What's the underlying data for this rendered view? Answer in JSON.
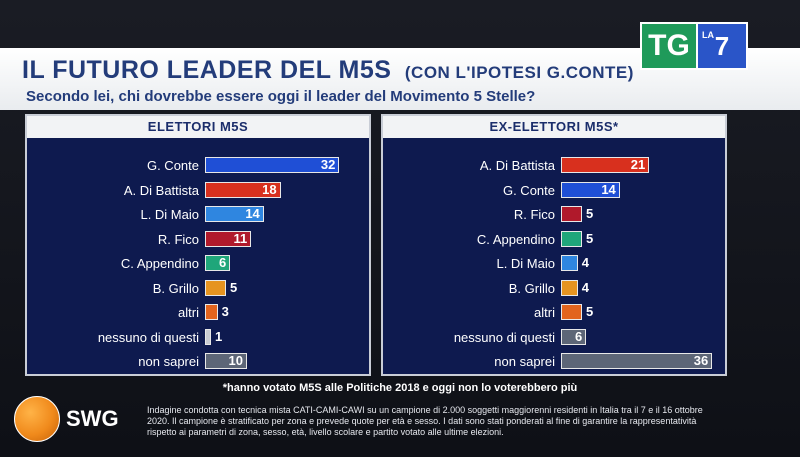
{
  "title": "IL FUTURO LEADER DEL M5S",
  "title_sub": "(CON L'IPOTESI G.CONTE)",
  "question": "Secondo lei, chi dovrebbe essere oggi il leader del Movimento 5 Stelle?",
  "logo": {
    "tg": "TG",
    "la": "LA",
    "seven": "7"
  },
  "footnote": "*hanno votato M5S alle Politiche 2018 e oggi non lo voterebbero più",
  "brand": "SWG",
  "methodology": "Indagine condotta con tecnica mista CATI-CAMI-CAWI su un campione di 2.000 soggetti maggiorenni residenti in Italia tra il 7 e il 16 ottobre 2020. Il campione è stratificato per zona e prevede quote per età e sesso. I dati sono stati ponderati al fine di garantire la rappresentatività rispetto ai parametri di zona, sesso, età, livello scolare e partito votato alle ultime elezioni.",
  "chart_data": [
    {
      "type": "bar",
      "orientation": "horizontal",
      "title": "ELETTORI M5S",
      "categories": [
        "G. Conte",
        "A. Di Battista",
        "L. Di Maio",
        "R. Fico",
        "C. Appendino",
        "B. Grillo",
        "altri",
        "nessuno di questi",
        "non saprei"
      ],
      "values": [
        32,
        18,
        14,
        11,
        6,
        5,
        3,
        1,
        10
      ],
      "colors": [
        "#1f4fd6",
        "#d8301e",
        "#2f86e0",
        "#b0192b",
        "#1fa67a",
        "#e69420",
        "#e2641e",
        "#c9ccd3",
        "#5d6677"
      ]
    },
    {
      "type": "bar",
      "orientation": "horizontal",
      "title": "EX-ELETTORI M5S*",
      "categories": [
        "A. Di Battista",
        "G. Conte",
        "R. Fico",
        "C. Appendino",
        "L. Di Maio",
        "B. Grillo",
        "altri",
        "nessuno di questi",
        "non saprei"
      ],
      "values": [
        21,
        14,
        5,
        5,
        4,
        4,
        5,
        6,
        36
      ],
      "colors": [
        "#d8301e",
        "#1f4fd6",
        "#b0192b",
        "#1fa67a",
        "#2f86e0",
        "#e69420",
        "#e2641e",
        "#5d6677",
        "#5d6677"
      ]
    }
  ]
}
